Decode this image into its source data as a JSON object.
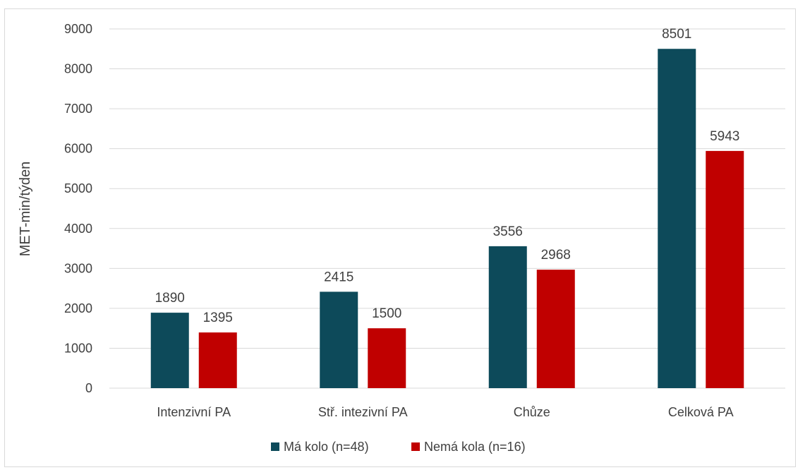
{
  "chart_data": {
    "type": "bar",
    "categories": [
      "Intenzivní PA",
      "Stř. intezivní PA",
      "Chůze",
      "Celková PA"
    ],
    "series": [
      {
        "name": "Má kolo (n=48)",
        "color": "#0d4a5a",
        "values": [
          1890,
          2415,
          3556,
          8501
        ]
      },
      {
        "name": "Nemá kola (n=16)",
        "color": "#c00000",
        "values": [
          1395,
          1500,
          2968,
          5943
        ]
      }
    ],
    "title": "",
    "xlabel": "",
    "ylabel": "MET-min/týden",
    "ylim": [
      0,
      9000
    ],
    "yticks": [
      0,
      1000,
      2000,
      3000,
      4000,
      5000,
      6000,
      7000,
      8000,
      9000
    ],
    "grid": true,
    "gridline_color": "#d9d9d9",
    "legend_position": "bottom"
  }
}
